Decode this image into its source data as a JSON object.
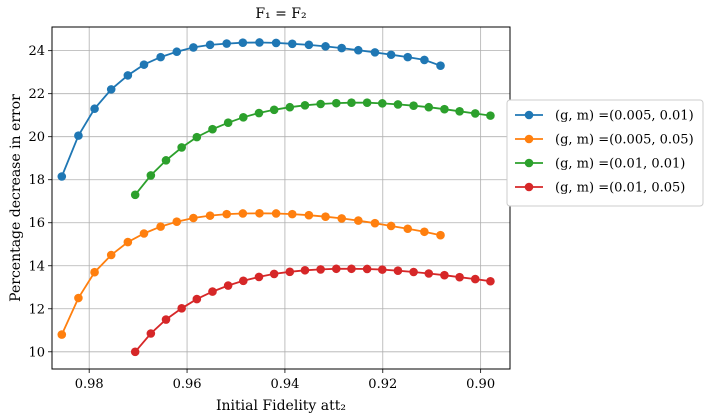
{
  "chart_data": {
    "type": "line",
    "title": "F₁ = F₂",
    "xlabel": "Initial Fidelity att₂",
    "ylabel": "Percentage decrease in error",
    "x_axis_reversed": true,
    "xlim": [
      0.9876,
      0.894
    ],
    "ylim": [
      9.2,
      25.1
    ],
    "x_ticks": [
      0.98,
      0.96,
      0.94,
      0.92,
      0.9
    ],
    "x_tick_labels": [
      "0.98",
      "0.96",
      "0.94",
      "0.92",
      "0.90"
    ],
    "y_ticks": [
      10,
      12,
      14,
      16,
      18,
      20,
      22,
      24
    ],
    "y_tick_labels": [
      "10",
      "12",
      "14",
      "16",
      "18",
      "20",
      "22",
      "24"
    ],
    "grid": true,
    "legend_position": "outside-right",
    "series": [
      {
        "name": "(g, m) =(0.005, 0.01)",
        "color": "#1f77b4",
        "x": [
          0.9856,
          0.9822,
          0.9789,
          0.9755,
          0.9721,
          0.9688,
          0.9654,
          0.9621,
          0.9587,
          0.9553,
          0.9519,
          0.9486,
          0.9452,
          0.9418,
          0.9385,
          0.9351,
          0.9317,
          0.9284,
          0.925,
          0.9216,
          0.9183,
          0.9149,
          0.9115,
          0.9082
        ],
        "y": [
          18.15,
          20.05,
          21.3,
          22.2,
          22.85,
          23.35,
          23.7,
          23.95,
          24.15,
          24.27,
          24.33,
          24.37,
          24.38,
          24.36,
          24.32,
          24.27,
          24.2,
          24.12,
          24.02,
          23.92,
          23.81,
          23.7,
          23.57,
          23.3
        ]
      },
      {
        "name": "(g, m) =(0.005, 0.05)",
        "color": "#ff7f0e",
        "x": [
          0.9856,
          0.9822,
          0.9789,
          0.9755,
          0.9721,
          0.9688,
          0.9654,
          0.9621,
          0.9587,
          0.9553,
          0.9519,
          0.9486,
          0.9452,
          0.9418,
          0.9385,
          0.9351,
          0.9317,
          0.9284,
          0.925,
          0.9216,
          0.9183,
          0.9149,
          0.9115,
          0.9082
        ],
        "y": [
          10.8,
          12.5,
          13.7,
          14.5,
          15.1,
          15.5,
          15.82,
          16.05,
          16.22,
          16.33,
          16.4,
          16.43,
          16.44,
          16.43,
          16.4,
          16.35,
          16.28,
          16.2,
          16.1,
          15.98,
          15.85,
          15.72,
          15.58,
          15.42
        ]
      },
      {
        "name": "(g, m) =(0.01, 0.01)",
        "color": "#2ca02c",
        "x": [
          0.9706,
          0.9674,
          0.9643,
          0.9611,
          0.958,
          0.9548,
          0.9516,
          0.9485,
          0.9453,
          0.9422,
          0.939,
          0.9359,
          0.9327,
          0.9295,
          0.9264,
          0.9232,
          0.9201,
          0.9169,
          0.9137,
          0.9106,
          0.9074,
          0.9043,
          0.9011,
          0.898
        ],
        "y": [
          17.3,
          18.2,
          18.9,
          19.5,
          19.98,
          20.35,
          20.65,
          20.9,
          21.1,
          21.25,
          21.37,
          21.46,
          21.52,
          21.56,
          21.58,
          21.58,
          21.55,
          21.5,
          21.44,
          21.37,
          21.28,
          21.18,
          21.08,
          20.98
        ]
      },
      {
        "name": "(g, m) =(0.01, 0.05)",
        "color": "#d62728",
        "x": [
          0.9706,
          0.9674,
          0.9643,
          0.9611,
          0.958,
          0.9548,
          0.9516,
          0.9485,
          0.9453,
          0.9422,
          0.939,
          0.9359,
          0.9327,
          0.9295,
          0.9264,
          0.9232,
          0.9201,
          0.9169,
          0.9137,
          0.9106,
          0.9074,
          0.9043,
          0.9011,
          0.898
        ],
        "y": [
          10.0,
          10.85,
          11.5,
          12.02,
          12.45,
          12.8,
          13.08,
          13.3,
          13.48,
          13.62,
          13.72,
          13.79,
          13.83,
          13.86,
          13.86,
          13.85,
          13.82,
          13.77,
          13.71,
          13.64,
          13.56,
          13.47,
          13.38,
          13.28
        ]
      }
    ]
  }
}
